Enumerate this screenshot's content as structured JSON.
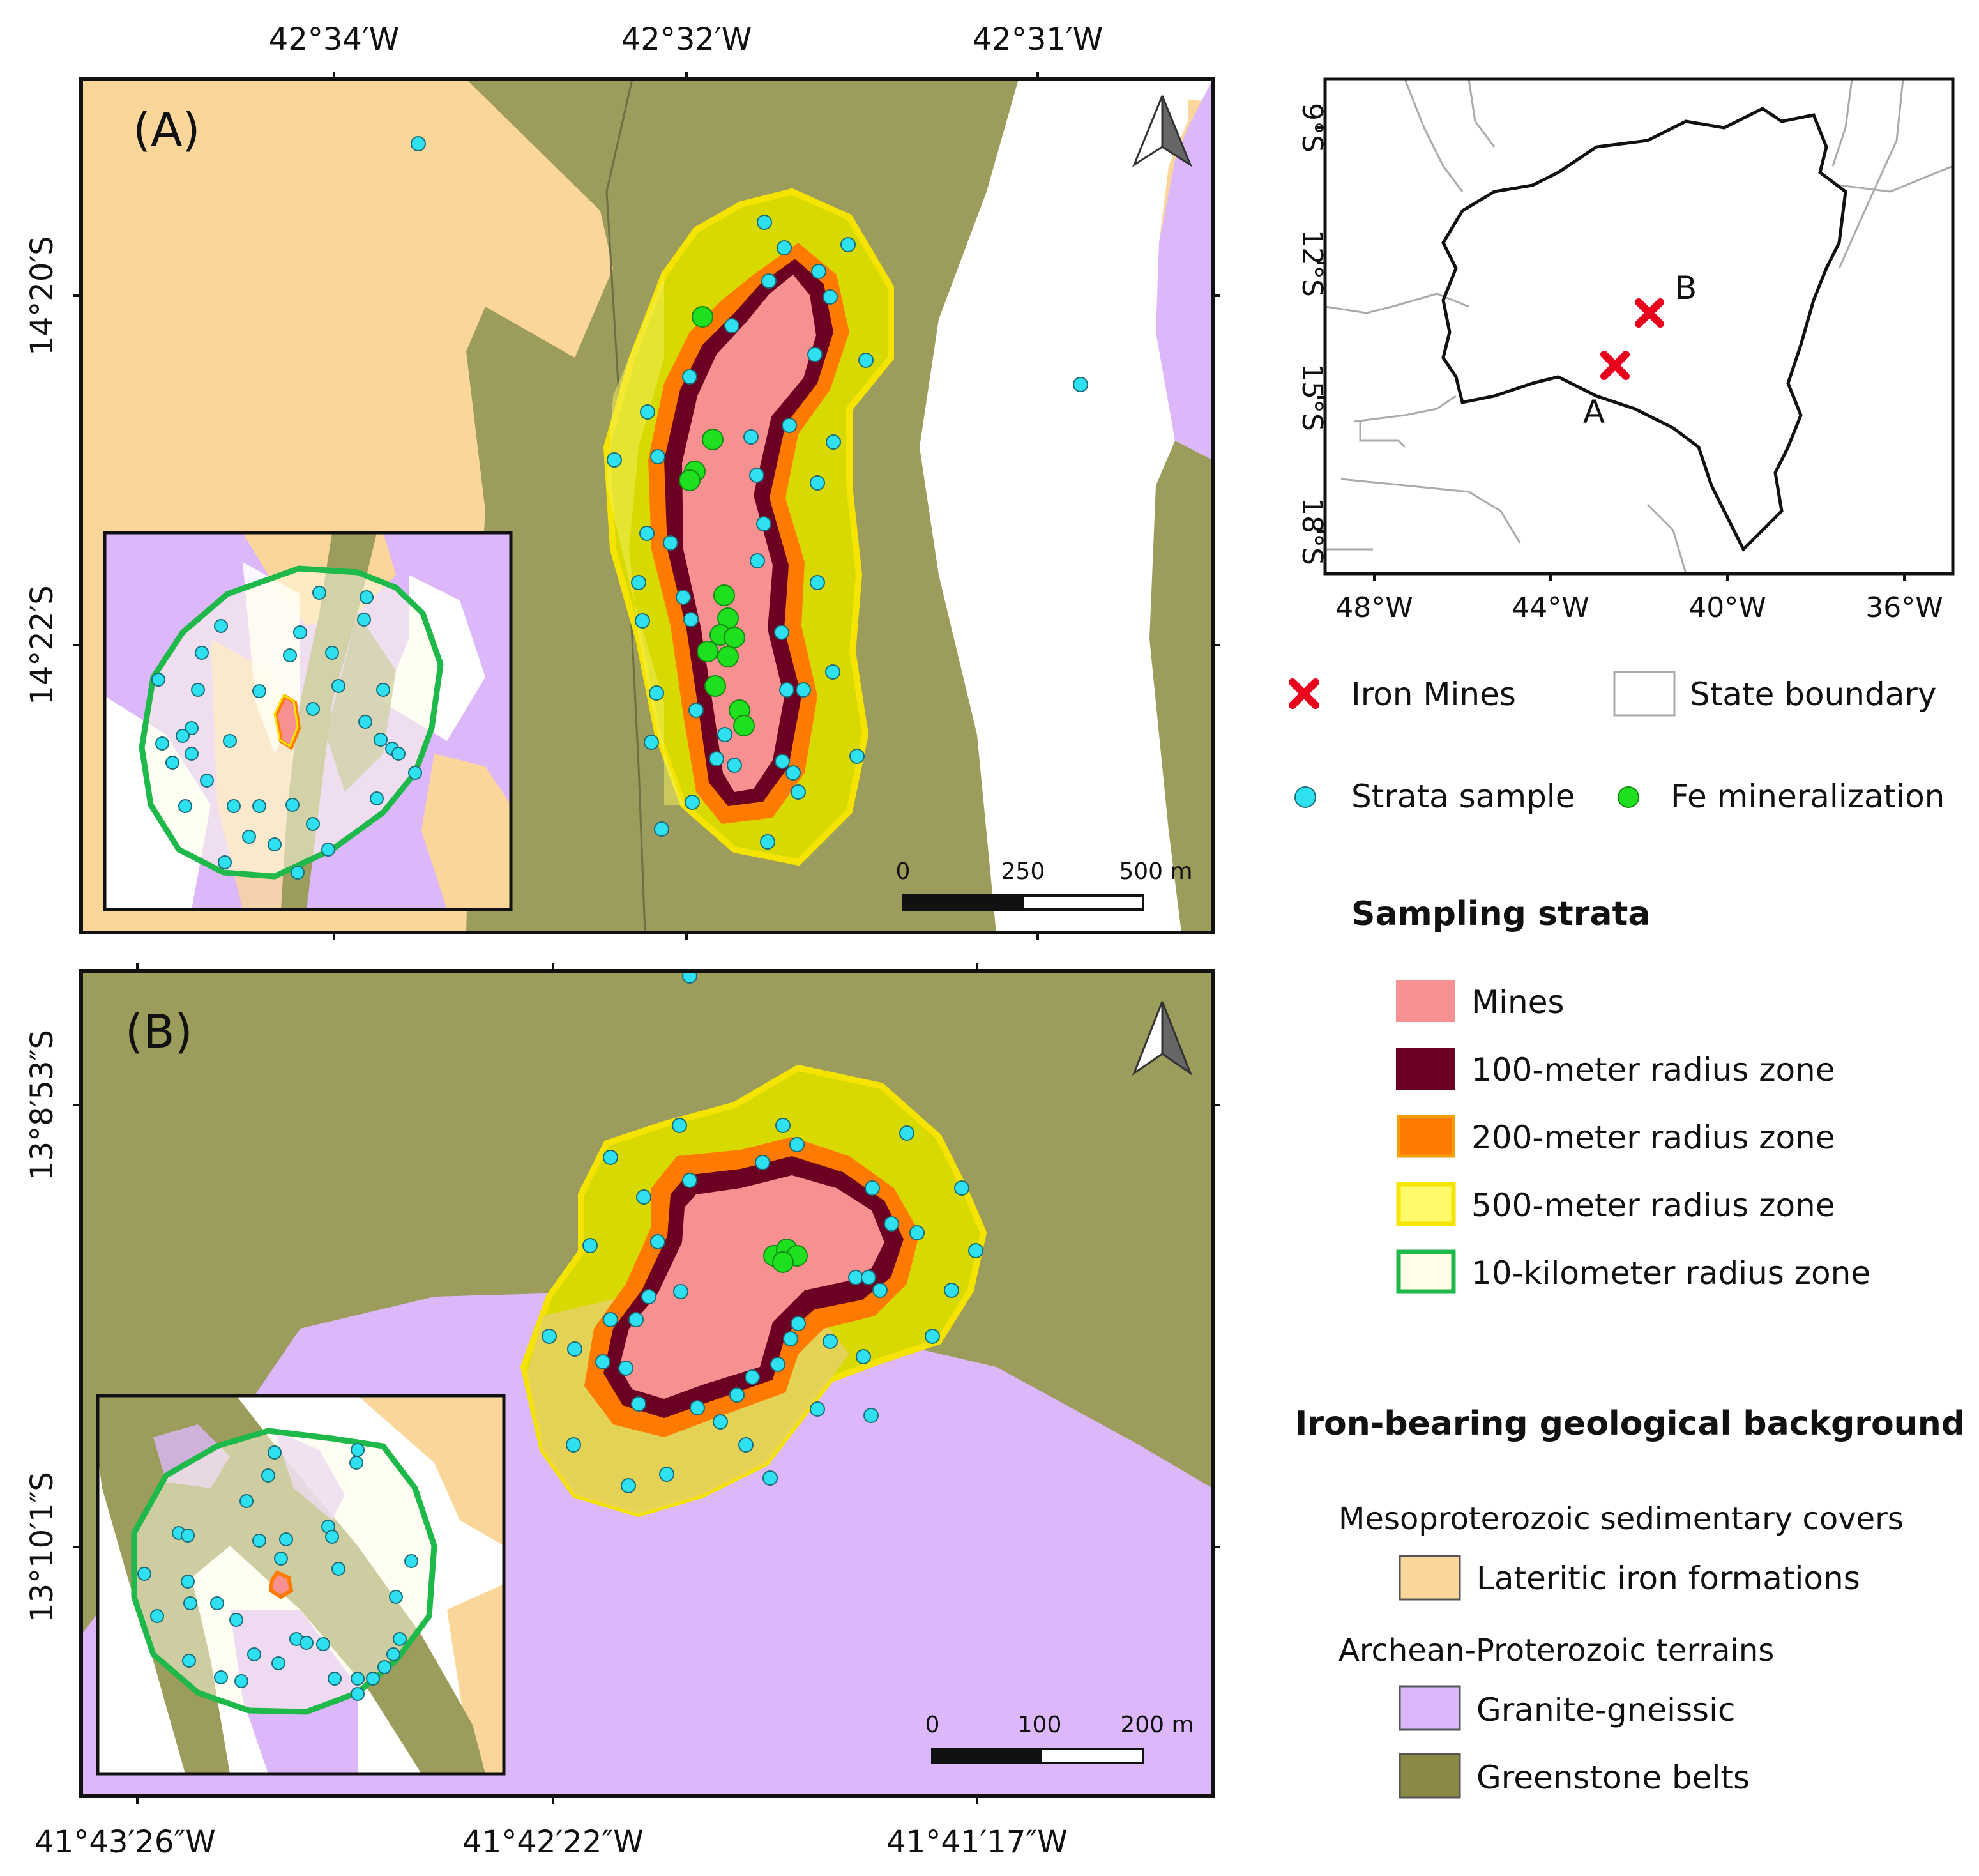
{
  "panel_a": {
    "label": "(A)",
    "lon_ticks": [
      "42°34′W",
      "42°32′W",
      "42°31′W"
    ],
    "lat_ticks": [
      "14°20′S",
      "14°22′S"
    ],
    "scale": {
      "labels": [
        "0",
        "250",
        "500 m"
      ]
    }
  },
  "panel_b": {
    "label": "(B)",
    "lon_ticks": [
      "41°43′26″W",
      "41°42′22″W",
      "41°41′17″W"
    ],
    "lat_ticks": [
      "13°8′53″S",
      "13°10′1″S"
    ],
    "scale": {
      "labels": [
        "0",
        "100",
        "200 m"
      ]
    }
  },
  "locator": {
    "lon_ticks": [
      "48°W",
      "44°W",
      "40°W",
      "36°W"
    ],
    "lat_ticks": [
      "9°S",
      "12°S",
      "15°S",
      "18°S"
    ],
    "site_a": "A",
    "site_b": "B"
  },
  "legend": {
    "iron_mines": "Iron Mines",
    "state_boundary": "State boundary",
    "strata_sample": "Strata sample",
    "fe_mineralization": "Fe mineralization",
    "strata_title": "Sampling strata",
    "strata": [
      {
        "label": "Mines",
        "color": "#f79090"
      },
      {
        "label": "100-meter radius zone",
        "color": "#6b0022"
      },
      {
        "label": "200-meter radius zone",
        "color": "#ff7a00"
      },
      {
        "label": "500-meter radius zone",
        "color": "#fffa6a"
      },
      {
        "label": "10-kilometer radius zone",
        "color": "#fffde8"
      }
    ],
    "geo_title": "Iron-bearing geological background",
    "meso_title": "Mesoproterozoic sedimentary covers",
    "lateritic": "Lateritic iron formations",
    "archean_title": "Archean-Proterozoic terrains",
    "granite": "Granite-gneissic",
    "greenstone": "Greenstone belts"
  },
  "colors": {
    "lateritic": "#fbd69a",
    "granite": "#dcb8fa",
    "greenstone": "#9c9c5c",
    "mine_fill": "#f79090",
    "zone100": "#6b0022",
    "zone200": "#ff7a00",
    "zone500_outline": "#f5e400",
    "zone10k": "#1fb84a",
    "strata_sample": "#2fe0f0",
    "fe_mineral": "#1ee01e",
    "iron_mine_marker": "#e8001c"
  }
}
